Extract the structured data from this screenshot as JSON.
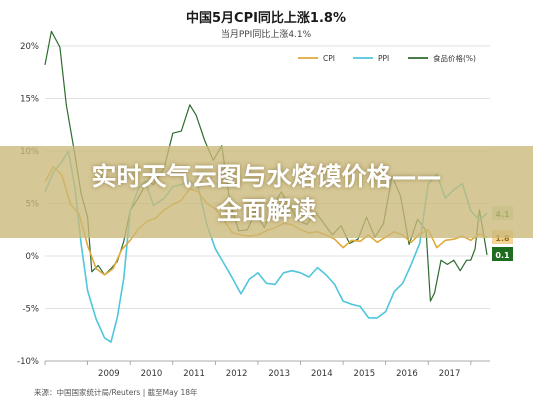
{
  "colors": {
    "cpi": "#e0a93a",
    "ppi": "#4fc6dc",
    "food": "#2f6b2f",
    "grid": "#d7d7d7",
    "axis_text": "#333333",
    "banner_text": "#ffffff"
  },
  "overlay": {
    "headline_line1": "实时天气云图与水烙馍价格——",
    "headline_line2": "全面解读"
  },
  "chart_data": {
    "type": "line",
    "title": "中国5月CPI同比上涨1.8%",
    "subtitle": "当月PPI同比上涨4.1%",
    "source": "来源：中国国家统计局/Reuters | 截至May 18年",
    "xlabel": "",
    "ylabel": "",
    "ylim": [
      -10,
      20
    ],
    "xlim": [
      2008.0,
      2018.45
    ],
    "yticks": [
      {
        "value": 20,
        "label": "20%"
      },
      {
        "value": 15,
        "label": "15%"
      },
      {
        "value": 10,
        "label": "10%"
      },
      {
        "value": 5,
        "label": "5%"
      },
      {
        "value": 0,
        "label": "0%"
      },
      {
        "value": -5,
        "label": "-5%"
      },
      {
        "value": -10,
        "label": "-10%"
      }
    ],
    "xticks": [
      {
        "value": 2009.5,
        "label": "2009"
      },
      {
        "value": 2010.5,
        "label": "2010"
      },
      {
        "value": 2011.5,
        "label": "2011"
      },
      {
        "value": 2012.5,
        "label": "2012"
      },
      {
        "value": 2013.5,
        "label": "2013"
      },
      {
        "value": 2014.5,
        "label": "2014"
      },
      {
        "value": 2015.5,
        "label": "2015"
      },
      {
        "value": 2016.5,
        "label": "2016"
      },
      {
        "value": 2017.5,
        "label": "2017"
      }
    ],
    "grid": true,
    "legend_position": "top-right",
    "series": [
      {
        "name": "CPI",
        "key": "cpi",
        "end_label": "1.8",
        "points": [
          [
            2008.0,
            7.1
          ],
          [
            2008.2,
            8.5
          ],
          [
            2008.4,
            7.7
          ],
          [
            2008.6,
            4.9
          ],
          [
            2008.8,
            4.0
          ],
          [
            2009.0,
            1.0
          ],
          [
            2009.2,
            -1.2
          ],
          [
            2009.4,
            -1.8
          ],
          [
            2009.6,
            -1.2
          ],
          [
            2009.8,
            0.6
          ],
          [
            2010.0,
            1.5
          ],
          [
            2010.2,
            2.6
          ],
          [
            2010.4,
            3.3
          ],
          [
            2010.6,
            3.6
          ],
          [
            2010.8,
            4.4
          ],
          [
            2011.0,
            4.9
          ],
          [
            2011.2,
            5.3
          ],
          [
            2011.4,
            6.4
          ],
          [
            2011.6,
            6.1
          ],
          [
            2011.8,
            5.0
          ],
          [
            2012.0,
            4.5
          ],
          [
            2012.2,
            3.4
          ],
          [
            2012.4,
            2.2
          ],
          [
            2012.6,
            2.0
          ],
          [
            2012.8,
            1.9
          ],
          [
            2013.0,
            2.0
          ],
          [
            2013.2,
            2.4
          ],
          [
            2013.4,
            2.7
          ],
          [
            2013.6,
            3.1
          ],
          [
            2013.8,
            3.0
          ],
          [
            2014.0,
            2.5
          ],
          [
            2014.2,
            2.2
          ],
          [
            2014.4,
            2.3
          ],
          [
            2014.6,
            2.0
          ],
          [
            2014.8,
            1.6
          ],
          [
            2015.0,
            0.8
          ],
          [
            2015.2,
            1.5
          ],
          [
            2015.4,
            1.4
          ],
          [
            2015.6,
            2.0
          ],
          [
            2015.8,
            1.3
          ],
          [
            2016.0,
            1.8
          ],
          [
            2016.2,
            2.3
          ],
          [
            2016.4,
            2.0
          ],
          [
            2016.6,
            1.3
          ],
          [
            2016.8,
            2.1
          ],
          [
            2017.0,
            2.5
          ],
          [
            2017.2,
            0.8
          ],
          [
            2017.4,
            1.5
          ],
          [
            2017.6,
            1.6
          ],
          [
            2017.8,
            1.9
          ],
          [
            2018.0,
            1.5
          ],
          [
            2018.2,
            2.1
          ],
          [
            2018.38,
            1.8
          ]
        ]
      },
      {
        "name": "PPI",
        "key": "ppi",
        "end_label": "4.1",
        "points": [
          [
            2008.0,
            6.1
          ],
          [
            2008.2,
            8.0
          ],
          [
            2008.4,
            9.0
          ],
          [
            2008.55,
            10.0
          ],
          [
            2008.7,
            6.6
          ],
          [
            2008.85,
            1.1
          ],
          [
            2009.0,
            -3.3
          ],
          [
            2009.2,
            -6.0
          ],
          [
            2009.4,
            -7.8
          ],
          [
            2009.55,
            -8.2
          ],
          [
            2009.7,
            -5.8
          ],
          [
            2009.85,
            -2.1
          ],
          [
            2010.0,
            4.3
          ],
          [
            2010.2,
            6.5
          ],
          [
            2010.35,
            7.1
          ],
          [
            2010.55,
            4.8
          ],
          [
            2010.8,
            5.5
          ],
          [
            2011.0,
            6.6
          ],
          [
            2011.2,
            6.8
          ],
          [
            2011.4,
            7.1
          ],
          [
            2011.6,
            6.5
          ],
          [
            2011.8,
            3.0
          ],
          [
            2012.0,
            0.7
          ],
          [
            2012.2,
            -0.7
          ],
          [
            2012.4,
            -2.1
          ],
          [
            2012.6,
            -3.6
          ],
          [
            2012.8,
            -2.2
          ],
          [
            2013.0,
            -1.6
          ],
          [
            2013.2,
            -2.6
          ],
          [
            2013.4,
            -2.7
          ],
          [
            2013.6,
            -1.6
          ],
          [
            2013.8,
            -1.4
          ],
          [
            2014.0,
            -1.6
          ],
          [
            2014.2,
            -2.0
          ],
          [
            2014.4,
            -1.1
          ],
          [
            2014.6,
            -1.8
          ],
          [
            2014.8,
            -2.7
          ],
          [
            2015.0,
            -4.3
          ],
          [
            2015.2,
            -4.6
          ],
          [
            2015.4,
            -4.8
          ],
          [
            2015.6,
            -5.9
          ],
          [
            2015.8,
            -5.9
          ],
          [
            2016.0,
            -5.3
          ],
          [
            2016.2,
            -3.4
          ],
          [
            2016.4,
            -2.6
          ],
          [
            2016.6,
            -0.8
          ],
          [
            2016.8,
            1.2
          ],
          [
            2017.0,
            6.9
          ],
          [
            2017.2,
            7.8
          ],
          [
            2017.4,
            5.5
          ],
          [
            2017.6,
            6.3
          ],
          [
            2017.8,
            6.9
          ],
          [
            2018.0,
            4.3
          ],
          [
            2018.2,
            3.4
          ],
          [
            2018.38,
            4.1
          ]
        ]
      },
      {
        "name": "食品价格(%)",
        "key": "food",
        "end_label": "0.1",
        "points": [
          [
            2008.0,
            18.2
          ],
          [
            2008.15,
            21.4
          ],
          [
            2008.35,
            19.9
          ],
          [
            2008.5,
            14.4
          ],
          [
            2008.7,
            9.7
          ],
          [
            2008.85,
            5.9
          ],
          [
            2009.0,
            3.7
          ],
          [
            2009.1,
            -1.5
          ],
          [
            2009.25,
            -0.9
          ],
          [
            2009.4,
            -1.8
          ],
          [
            2009.55,
            -1.2
          ],
          [
            2009.7,
            -0.5
          ],
          [
            2009.85,
            1.4
          ],
          [
            2010.0,
            4.3
          ],
          [
            2010.2,
            5.6
          ],
          [
            2010.4,
            7.1
          ],
          [
            2010.55,
            6.8
          ],
          [
            2010.8,
            8.4
          ],
          [
            2011.0,
            11.7
          ],
          [
            2011.2,
            11.9
          ],
          [
            2011.4,
            14.4
          ],
          [
            2011.55,
            13.4
          ],
          [
            2011.75,
            11.0
          ],
          [
            2011.95,
            9.1
          ],
          [
            2012.15,
            10.5
          ],
          [
            2012.35,
            5.0
          ],
          [
            2012.55,
            2.4
          ],
          [
            2012.75,
            2.5
          ],
          [
            2012.95,
            4.2
          ],
          [
            2013.15,
            2.7
          ],
          [
            2013.35,
            4.7
          ],
          [
            2013.55,
            6.1
          ],
          [
            2013.75,
            4.7
          ],
          [
            2013.95,
            3.4
          ],
          [
            2014.15,
            3.0
          ],
          [
            2014.35,
            4.2
          ],
          [
            2014.55,
            3.1
          ],
          [
            2014.75,
            2.0
          ],
          [
            2014.95,
            2.9
          ],
          [
            2015.15,
            1.2
          ],
          [
            2015.35,
            1.6
          ],
          [
            2015.55,
            3.7
          ],
          [
            2015.75,
            1.8
          ],
          [
            2015.95,
            3.1
          ],
          [
            2016.15,
            7.6
          ],
          [
            2016.35,
            5.7
          ],
          [
            2016.55,
            1.1
          ],
          [
            2016.75,
            3.5
          ],
          [
            2016.95,
            2.4
          ],
          [
            2017.05,
            -4.3
          ],
          [
            2017.15,
            -3.5
          ],
          [
            2017.3,
            -0.4
          ],
          [
            2017.45,
            -0.8
          ],
          [
            2017.6,
            -0.4
          ],
          [
            2017.75,
            -1.4
          ],
          [
            2017.9,
            -0.4
          ],
          [
            2018.0,
            -0.4
          ],
          [
            2018.1,
            0.7
          ],
          [
            2018.2,
            4.4
          ],
          [
            2018.3,
            2.1
          ],
          [
            2018.38,
            0.1
          ]
        ]
      }
    ]
  }
}
